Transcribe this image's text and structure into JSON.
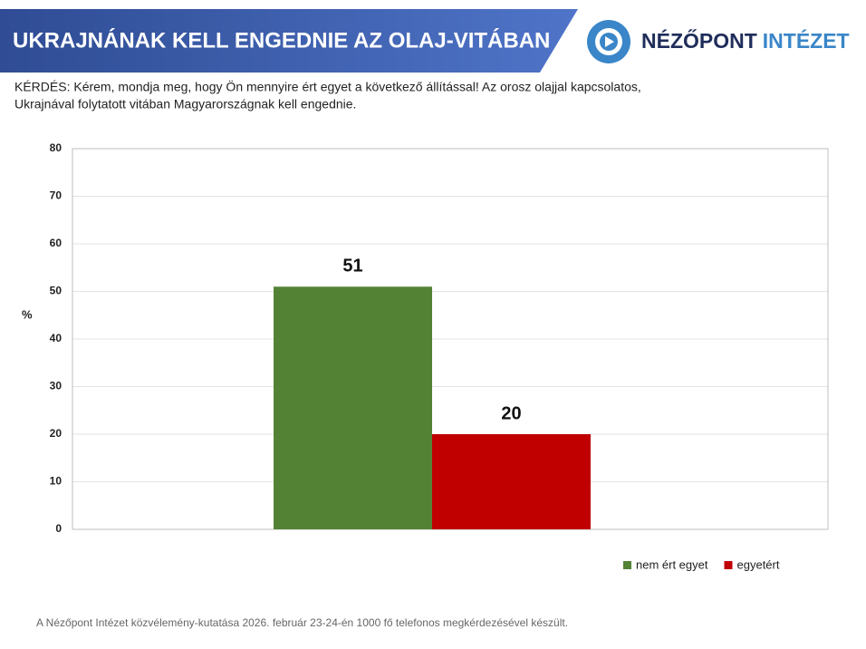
{
  "header": {
    "title": "UKRAJNÁNAK KELL ENGEDNIE AZ OLAJ-VITÁBAN",
    "logo_name": "NÉZŐPONT",
    "logo_suffix": "INTÉZET"
  },
  "question": [
    "KÉRDÉS: Kérem, mondja meg, hogy Ön mennyire ért egyet a következő állítással! Az orosz olajjal kapcsolatos,",
    "Ukrajnával folytatott vitában Magyarországnak kell engednie."
  ],
  "chart_data": {
    "type": "bar",
    "y_label": "%",
    "categories": [
      null
    ],
    "series": [
      {
        "name": "nem ért egyet",
        "color": "#548235",
        "values": [
          51
        ]
      },
      {
        "name": "egyetért",
        "color": "#c00000",
        "values": [
          20
        ]
      }
    ],
    "ylim": [
      0,
      80
    ],
    "yticks": [
      0,
      10,
      20,
      30,
      40,
      50,
      60,
      70,
      80
    ],
    "grid": true,
    "legend": "bottom-right"
  },
  "footer": "A Nézőpont Intézet közvélemény-kutatása 2026. február 23-24-én 1000 fő telefonos megkérdezésével készült."
}
